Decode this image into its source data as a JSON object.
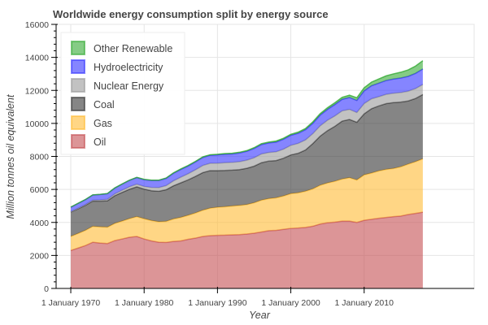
{
  "chart_data": {
    "type": "area",
    "stacked": true,
    "title": "Worldwide energy consumption split by energy source",
    "xlabel": "Year",
    "ylabel": "Million tonnes oil equivalent",
    "xlim": [
      1968,
      2025
    ],
    "ylim": [
      0,
      16000
    ],
    "yticks": [
      0,
      2000,
      4000,
      6000,
      8000,
      10000,
      12000,
      14000,
      16000
    ],
    "xticks": [
      {
        "year": 1970,
        "label": "1 January 1970"
      },
      {
        "year": 1980,
        "label": "1 January 1980"
      },
      {
        "year": 1990,
        "label": "1 January 1990"
      },
      {
        "year": 2000,
        "label": "1 January 2000"
      },
      {
        "year": 2010,
        "label": "1 January 2010"
      }
    ],
    "grid": true,
    "legend_position": "top-left",
    "x": [
      1970,
      1971,
      1972,
      1973,
      1974,
      1975,
      1976,
      1977,
      1978,
      1979,
      1980,
      1981,
      1982,
      1983,
      1984,
      1985,
      1986,
      1987,
      1988,
      1989,
      1990,
      1991,
      1992,
      1993,
      1994,
      1995,
      1996,
      1997,
      1998,
      1999,
      2000,
      2001,
      2002,
      2003,
      2004,
      2005,
      2006,
      2007,
      2008,
      2009,
      2010,
      2011,
      2012,
      2013,
      2014,
      2015,
      2016,
      2017,
      2018
    ],
    "series": [
      {
        "name": "Oil",
        "color": "#c44e52",
        "values": [
          2300,
          2450,
          2600,
          2800,
          2750,
          2720,
          2900,
          3000,
          3100,
          3150,
          3000,
          2880,
          2800,
          2790,
          2850,
          2880,
          2980,
          3050,
          3150,
          3200,
          3220,
          3230,
          3250,
          3260,
          3300,
          3350,
          3420,
          3500,
          3520,
          3580,
          3640,
          3660,
          3700,
          3770,
          3900,
          3980,
          4020,
          4080,
          4080,
          4000,
          4130,
          4190,
          4250,
          4300,
          4350,
          4390,
          4480,
          4550,
          4620
        ]
      },
      {
        "name": "Gas",
        "color": "#ffbb33",
        "values": [
          850,
          880,
          920,
          960,
          980,
          990,
          1040,
          1080,
          1130,
          1200,
          1220,
          1230,
          1240,
          1270,
          1360,
          1420,
          1450,
          1520,
          1590,
          1660,
          1700,
          1720,
          1740,
          1770,
          1780,
          1840,
          1930,
          1940,
          1970,
          2020,
          2100,
          2130,
          2190,
          2260,
          2350,
          2410,
          2470,
          2550,
          2630,
          2570,
          2750,
          2800,
          2870,
          2910,
          2920,
          2980,
          3050,
          3130,
          3230
        ]
      },
      {
        "name": "Coal",
        "color": "#333333",
        "values": [
          1480,
          1500,
          1520,
          1540,
          1560,
          1600,
          1680,
          1740,
          1780,
          1810,
          1800,
          1810,
          1850,
          1920,
          2010,
          2100,
          2150,
          2220,
          2280,
          2280,
          2220,
          2200,
          2180,
          2170,
          2200,
          2220,
          2270,
          2280,
          2260,
          2290,
          2350,
          2400,
          2500,
          2750,
          2980,
          3170,
          3330,
          3510,
          3530,
          3500,
          3700,
          3900,
          3940,
          3990,
          3990,
          3920,
          3830,
          3830,
          3900
        ]
      },
      {
        "name": "Nuclear Energy",
        "color": "#999999",
        "values": [
          20,
          30,
          40,
          50,
          70,
          90,
          110,
          130,
          150,
          160,
          160,
          200,
          220,
          250,
          300,
          340,
          370,
          400,
          430,
          440,
          450,
          470,
          470,
          480,
          490,
          510,
          530,
          520,
          530,
          550,
          580,
          600,
          610,
          600,
          620,
          630,
          630,
          620,
          610,
          590,
          620,
          600,
          560,
          560,
          570,
          580,
          590,
          600,
          610
        ]
      },
      {
        "name": "Hydroelectricity",
        "color": "#3333ff",
        "values": [
          270,
          290,
          300,
          310,
          330,
          340,
          350,
          370,
          390,
          400,
          410,
          420,
          430,
          440,
          460,
          470,
          470,
          480,
          490,
          490,
          500,
          510,
          510,
          530,
          540,
          560,
          570,
          580,
          590,
          600,
          610,
          610,
          620,
          630,
          650,
          660,
          690,
          700,
          720,
          730,
          770,
          790,
          820,
          840,
          860,
          880,
          900,
          920,
          940
        ]
      },
      {
        "name": "Other Renewable",
        "color": "#33aa33",
        "values": [
          10,
          10,
          10,
          10,
          10,
          10,
          10,
          10,
          10,
          10,
          20,
          20,
          20,
          20,
          20,
          30,
          30,
          30,
          30,
          30,
          40,
          40,
          40,
          40,
          40,
          50,
          50,
          50,
          60,
          60,
          60,
          70,
          70,
          80,
          90,
          100,
          110,
          120,
          140,
          160,
          190,
          220,
          250,
          280,
          310,
          350,
          390,
          440,
          500
        ]
      }
    ]
  }
}
